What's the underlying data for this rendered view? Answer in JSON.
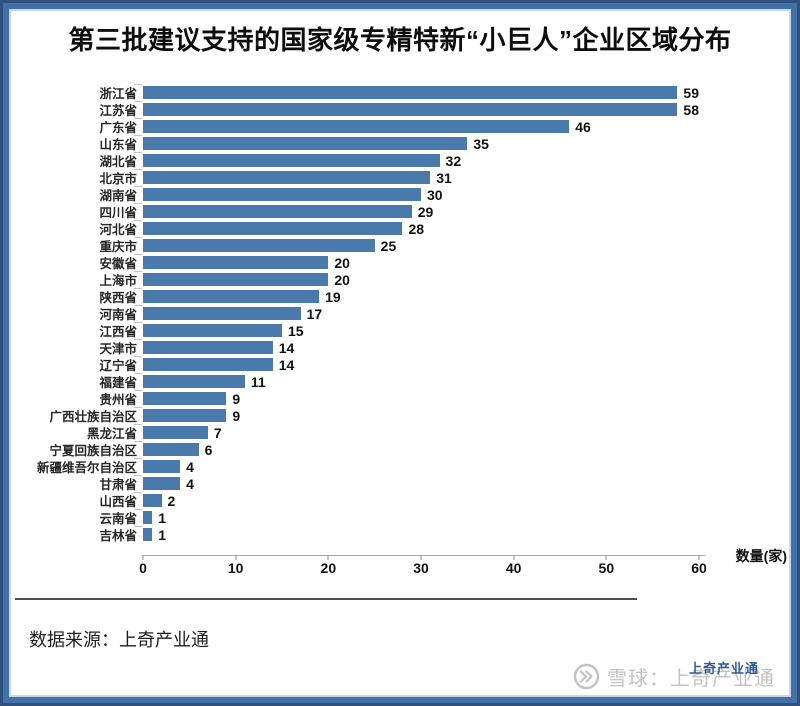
{
  "title": "第三批建议支持的国家级专精特新“小巨人”企业区域分布",
  "chart_data": {
    "type": "bar",
    "orientation": "horizontal",
    "categories": [
      "浙江省",
      "江苏省",
      "广东省",
      "山东省",
      "湖北省",
      "北京市",
      "湖南省",
      "四川省",
      "河北省",
      "重庆市",
      "安徽省",
      "上海市",
      "陕西省",
      "河南省",
      "江西省",
      "天津市",
      "辽宁省",
      "福建省",
      "贵州省",
      "广西壮族自治区",
      "黑龙江省",
      "宁夏回族自治区",
      "新疆维吾尔自治区",
      "甘肃省",
      "山西省",
      "云南省",
      "吉林省"
    ],
    "values": [
      59,
      58,
      46,
      35,
      32,
      31,
      30,
      29,
      28,
      25,
      20,
      20,
      19,
      17,
      15,
      14,
      14,
      11,
      9,
      9,
      7,
      6,
      4,
      4,
      2,
      1,
      1
    ],
    "xlabel": "数量(家)",
    "xticks": [
      0,
      10,
      20,
      30,
      40,
      50,
      60
    ],
    "xlim": [
      0,
      60
    ],
    "bar_color": "#4a7aab",
    "grid": false,
    "value_labels": true,
    "legend": "none"
  },
  "footer": {
    "source_label": "数据来源：上奇产业通"
  },
  "watermark": {
    "logo_icon": "xueqiu-circle-icon",
    "brand_gray": "雪球：上奇产业通",
    "brand_blue": "上奇产业通"
  },
  "colors": {
    "frame_outer": "#30517c",
    "frame_main": "#4171a6",
    "frame_inner_edge": "#c9d9ed",
    "bar": "#4a7aab",
    "divider": "#4d4d4d",
    "axis": "#aaaaaa",
    "watermark_gray": "#c3c3c3",
    "watermark_blue": "#2e5d97"
  }
}
